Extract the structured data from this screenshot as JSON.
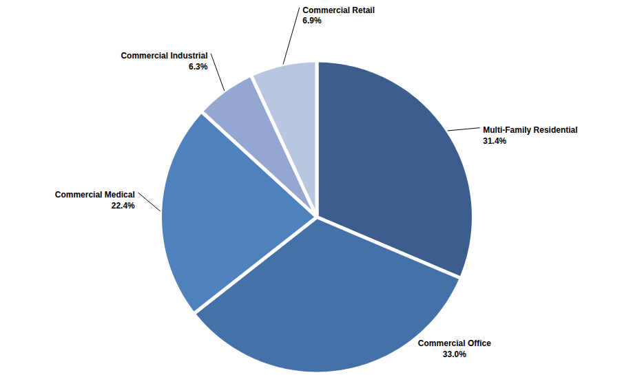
{
  "chart_data": {
    "type": "pie",
    "categories": [
      "Multi-Family Residential",
      "Commercial Office",
      "Commercial Medical",
      "Commercial Industrial",
      "Commercial Retail"
    ],
    "values": [
      31.4,
      33.0,
      22.4,
      6.3,
      6.9
    ],
    "value_labels": [
      "31.4%",
      "33.0%",
      "22.4%",
      "6.3%",
      "6.9%"
    ],
    "colors": [
      "#3b5e8c",
      "#4571a9",
      "#4f81bd",
      "#93a7d1",
      "#b8c6e1"
    ],
    "data_labels": true
  }
}
